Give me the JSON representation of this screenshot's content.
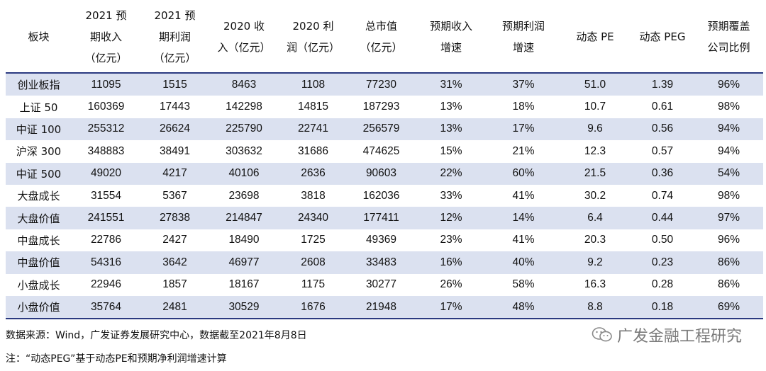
{
  "table": {
    "headers": [
      [
        "板块"
      ],
      [
        "2021 预",
        "期收入",
        "（亿元）"
      ],
      [
        "2021 预",
        "期利润",
        "（亿元）"
      ],
      [
        "2020 收",
        "入（亿元）"
      ],
      [
        "2020 利",
        "润（亿元）"
      ],
      [
        "总市值",
        "（亿元）"
      ],
      [
        "预期收入",
        "增速"
      ],
      [
        "预期利润",
        "增速"
      ],
      [
        "动态 PE"
      ],
      [
        "动态 PEG"
      ],
      [
        "预期覆盖",
        "公司比例"
      ]
    ],
    "rows": [
      [
        "创业板指",
        "11095",
        "1515",
        "8463",
        "1108",
        "77230",
        "31%",
        "37%",
        "51.0",
        "1.39",
        "96%"
      ],
      [
        "上证 50",
        "160369",
        "17443",
        "142298",
        "14815",
        "187293",
        "13%",
        "18%",
        "10.7",
        "0.61",
        "98%"
      ],
      [
        "中证 100",
        "255312",
        "26624",
        "225790",
        "22741",
        "256579",
        "13%",
        "17%",
        "9.6",
        "0.56",
        "94%"
      ],
      [
        "沪深 300",
        "348883",
        "38491",
        "303632",
        "31686",
        "474625",
        "15%",
        "21%",
        "12.3",
        "0.57",
        "94%"
      ],
      [
        "中证 500",
        "49020",
        "4217",
        "40106",
        "2636",
        "90603",
        "22%",
        "60%",
        "21.5",
        "0.36",
        "54%"
      ],
      [
        "大盘成长",
        "31554",
        "5367",
        "23698",
        "3818",
        "162036",
        "33%",
        "41%",
        "30.2",
        "0.74",
        "98%"
      ],
      [
        "大盘价值",
        "241551",
        "27838",
        "214847",
        "24340",
        "177411",
        "12%",
        "14%",
        "6.4",
        "0.44",
        "97%"
      ],
      [
        "中盘成长",
        "22786",
        "2427",
        "18490",
        "1725",
        "49369",
        "23%",
        "41%",
        "20.3",
        "0.50",
        "96%"
      ],
      [
        "中盘价值",
        "54316",
        "3642",
        "46977",
        "2608",
        "33483",
        "16%",
        "40%",
        "9.2",
        "0.23",
        "86%"
      ],
      [
        "小盘成长",
        "22946",
        "1857",
        "18167",
        "1175",
        "30277",
        "26%",
        "58%",
        "16.3",
        "0.28",
        "86%"
      ],
      [
        "小盘价值",
        "35764",
        "2481",
        "30529",
        "1676",
        "21948",
        "17%",
        "48%",
        "8.8",
        "0.18",
        "69%"
      ]
    ]
  },
  "notes": {
    "source": "数据来源：Wind，广发证券发展研究中心，数据截至2021年8月8日",
    "remark": "注：“动态PEG”基于动态PE和预期净利润增速计算"
  },
  "watermark": {
    "text": "广发金融工程研究",
    "icon": "wechat-icon"
  },
  "colors": {
    "row_shade": "#dbe1f0",
    "rule": "#2b3a80"
  }
}
